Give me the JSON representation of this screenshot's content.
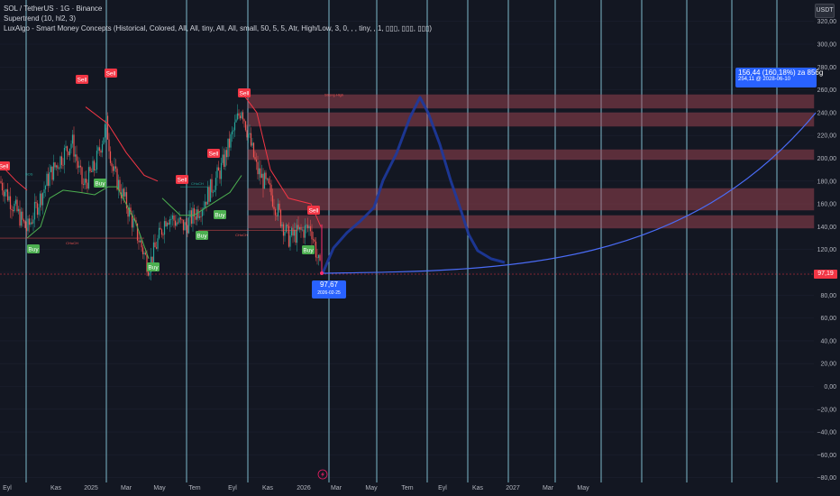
{
  "legend": {
    "symbol": "SOL / TetherUS · 1G · Binance",
    "indicator1": "Supertrend (10, hl2, 3)",
    "indicator2": "LuxAlgo - Smart Money Concepts (Historical, Colored, All, All, tiny, All, All, small, 50, 5, 5, Atr, High/Low, 3, 0, , , tiny, , 1, ▯▯▯, ▯▯▯, ▯▯▯)"
  },
  "currency": "USDT",
  "projection": {
    "line1": "156,44 (160,18%) za 856g",
    "line2": "254,11 @ 2028-06-10"
  },
  "current": {
    "price": "97,67",
    "date": "2026-02-25"
  },
  "last_price": "97,19",
  "price_axis": [
    "320,00",
    "300,00",
    "280,00",
    "260,00",
    "240,00",
    "220,00",
    "200,00",
    "180,00",
    "160,00",
    "140,00",
    "120,00",
    "100,00",
    "80,00",
    "60,00",
    "40,00",
    "20,00",
    "0,00",
    "−20,00",
    "−40,00",
    "−60,00",
    "−80,00"
  ],
  "time_axis": [
    "Eyl",
    "Kas",
    "2025",
    "Mar",
    "May",
    "Tem",
    "Eyl",
    "Kas",
    "2026",
    "Mar",
    "May",
    "Tem",
    "Eyl",
    "Kas",
    "2027",
    "Mar",
    "May"
  ],
  "signals": {
    "sell": "Sell",
    "buy": "Buy",
    "choch": "CHoCH",
    "bos": "BOS",
    "strong_high": "Strong High"
  },
  "colors": {
    "background": "#131722",
    "grid": "#1c2030",
    "cycle_line": "#8fd6e8",
    "up": "#26a69a",
    "down": "#ef5350",
    "supertrend_up": "#4caf50",
    "supertrend_down": "#f23645",
    "zone": "#b24a58",
    "projection": "#2962ff"
  },
  "icons": {
    "replay": "lightning-icon"
  }
}
